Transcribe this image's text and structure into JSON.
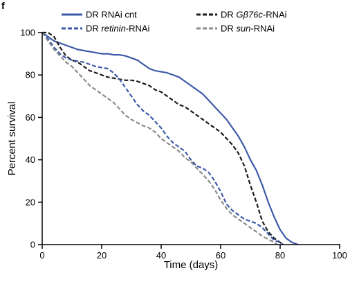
{
  "panel_letter": "f",
  "chart_data": {
    "type": "line",
    "xlabel": "Time (days)",
    "ylabel": "Percent survival",
    "xlim": [
      0,
      100
    ],
    "ylim": [
      0,
      100
    ],
    "xticks": [
      0,
      20,
      40,
      60,
      80,
      100
    ],
    "yticks": [
      0,
      20,
      40,
      60,
      80,
      100
    ],
    "grid": false,
    "legend_position": "top",
    "series": [
      {
        "key": "rnai-cnt",
        "legend": [
          {
            "text": "DR RNAi cnt",
            "italic": false
          }
        ],
        "color": "#3d5aa8",
        "dash": "solid",
        "points": [
          [
            0,
            100
          ],
          [
            2,
            98
          ],
          [
            4,
            96
          ],
          [
            6,
            95
          ],
          [
            8,
            94
          ],
          [
            10,
            93
          ],
          [
            12,
            92
          ],
          [
            14,
            91.5
          ],
          [
            16,
            91
          ],
          [
            18,
            90.5
          ],
          [
            20,
            90
          ],
          [
            22,
            90
          ],
          [
            24,
            89.5
          ],
          [
            26,
            89.5
          ],
          [
            28,
            89
          ],
          [
            30,
            88
          ],
          [
            32,
            87
          ],
          [
            34,
            85
          ],
          [
            36,
            83
          ],
          [
            38,
            82
          ],
          [
            40,
            81.5
          ],
          [
            42,
            81
          ],
          [
            44,
            80
          ],
          [
            46,
            79
          ],
          [
            48,
            77
          ],
          [
            50,
            75
          ],
          [
            52,
            73
          ],
          [
            54,
            71
          ],
          [
            56,
            68
          ],
          [
            58,
            65
          ],
          [
            60,
            62
          ],
          [
            62,
            59
          ],
          [
            64,
            55
          ],
          [
            66,
            51
          ],
          [
            68,
            46
          ],
          [
            70,
            40
          ],
          [
            72,
            35
          ],
          [
            74,
            28
          ],
          [
            76,
            20
          ],
          [
            78,
            13
          ],
          [
            80,
            7
          ],
          [
            82,
            3
          ],
          [
            84,
            1
          ],
          [
            86,
            0
          ]
        ]
      },
      {
        "key": "gbeta76c-rnai",
        "legend": [
          {
            "text": "DR ",
            "italic": false
          },
          {
            "text": "Gβ76c",
            "italic": true
          },
          {
            "text": "-RNAi",
            "italic": false
          }
        ],
        "color": "#1a1a1a",
        "dash": "6,3",
        "points": [
          [
            0,
            100
          ],
          [
            2,
            100
          ],
          [
            4,
            98
          ],
          [
            6,
            93
          ],
          [
            8,
            89
          ],
          [
            10,
            87
          ],
          [
            12,
            86
          ],
          [
            14,
            84
          ],
          [
            16,
            82
          ],
          [
            18,
            81
          ],
          [
            20,
            80
          ],
          [
            22,
            79
          ],
          [
            24,
            78.5
          ],
          [
            26,
            78
          ],
          [
            28,
            77.5
          ],
          [
            30,
            77.5
          ],
          [
            32,
            77
          ],
          [
            34,
            76
          ],
          [
            36,
            75
          ],
          [
            38,
            73
          ],
          [
            40,
            72
          ],
          [
            42,
            70
          ],
          [
            44,
            68
          ],
          [
            46,
            66
          ],
          [
            48,
            65
          ],
          [
            50,
            63
          ],
          [
            52,
            61
          ],
          [
            54,
            59
          ],
          [
            56,
            57
          ],
          [
            58,
            55
          ],
          [
            60,
            53
          ],
          [
            62,
            50
          ],
          [
            64,
            47
          ],
          [
            66,
            43
          ],
          [
            68,
            37
          ],
          [
            70,
            28
          ],
          [
            72,
            20
          ],
          [
            74,
            11
          ],
          [
            76,
            6
          ],
          [
            78,
            3
          ],
          [
            80,
            1
          ],
          [
            81,
            0
          ]
        ]
      },
      {
        "key": "retinin-rnai",
        "legend": [
          {
            "text": "DR ",
            "italic": false
          },
          {
            "text": "retinin",
            "italic": true
          },
          {
            "text": "-RNAi",
            "italic": false
          }
        ],
        "color": "#3d5aa8",
        "dash": "6,3",
        "points": [
          [
            0,
            100
          ],
          [
            2,
            97
          ],
          [
            4,
            93
          ],
          [
            6,
            90
          ],
          [
            8,
            88
          ],
          [
            10,
            87
          ],
          [
            12,
            86.5
          ],
          [
            14,
            86
          ],
          [
            16,
            85
          ],
          [
            18,
            84
          ],
          [
            20,
            83.5
          ],
          [
            22,
            83
          ],
          [
            24,
            81
          ],
          [
            26,
            78
          ],
          [
            28,
            74
          ],
          [
            30,
            70
          ],
          [
            32,
            66
          ],
          [
            34,
            63
          ],
          [
            36,
            61
          ],
          [
            38,
            58
          ],
          [
            40,
            55
          ],
          [
            42,
            51
          ],
          [
            44,
            48
          ],
          [
            46,
            46
          ],
          [
            48,
            44
          ],
          [
            50,
            40
          ],
          [
            52,
            37
          ],
          [
            54,
            36
          ],
          [
            56,
            34
          ],
          [
            58,
            30
          ],
          [
            60,
            25
          ],
          [
            62,
            19
          ],
          [
            64,
            16
          ],
          [
            66,
            14
          ],
          [
            68,
            12
          ],
          [
            70,
            11
          ],
          [
            72,
            10
          ],
          [
            74,
            8
          ],
          [
            76,
            5
          ],
          [
            78,
            2
          ],
          [
            80,
            1
          ],
          [
            81,
            0
          ]
        ]
      },
      {
        "key": "sun-rnai",
        "legend": [
          {
            "text": "DR ",
            "italic": false
          },
          {
            "text": "sun",
            "italic": true
          },
          {
            "text": "-RNAi",
            "italic": false
          }
        ],
        "color": "#8c8c8c",
        "dash": "6,3",
        "points": [
          [
            0,
            100
          ],
          [
            2,
            96
          ],
          [
            4,
            92
          ],
          [
            6,
            89
          ],
          [
            8,
            86
          ],
          [
            10,
            84
          ],
          [
            12,
            81
          ],
          [
            14,
            78
          ],
          [
            16,
            75
          ],
          [
            18,
            73
          ],
          [
            20,
            71
          ],
          [
            22,
            69
          ],
          [
            24,
            67
          ],
          [
            26,
            64
          ],
          [
            28,
            61
          ],
          [
            30,
            59
          ],
          [
            32,
            57.5
          ],
          [
            34,
            56
          ],
          [
            36,
            55
          ],
          [
            38,
            53
          ],
          [
            40,
            50
          ],
          [
            42,
            48
          ],
          [
            44,
            46
          ],
          [
            46,
            44
          ],
          [
            48,
            41
          ],
          [
            50,
            39
          ],
          [
            52,
            36
          ],
          [
            54,
            33
          ],
          [
            56,
            30
          ],
          [
            58,
            26
          ],
          [
            60,
            21
          ],
          [
            62,
            17
          ],
          [
            64,
            14
          ],
          [
            66,
            12
          ],
          [
            68,
            10
          ],
          [
            70,
            8
          ],
          [
            72,
            6
          ],
          [
            74,
            4
          ],
          [
            76,
            2.5
          ],
          [
            78,
            1
          ],
          [
            79,
            0
          ]
        ]
      }
    ]
  }
}
